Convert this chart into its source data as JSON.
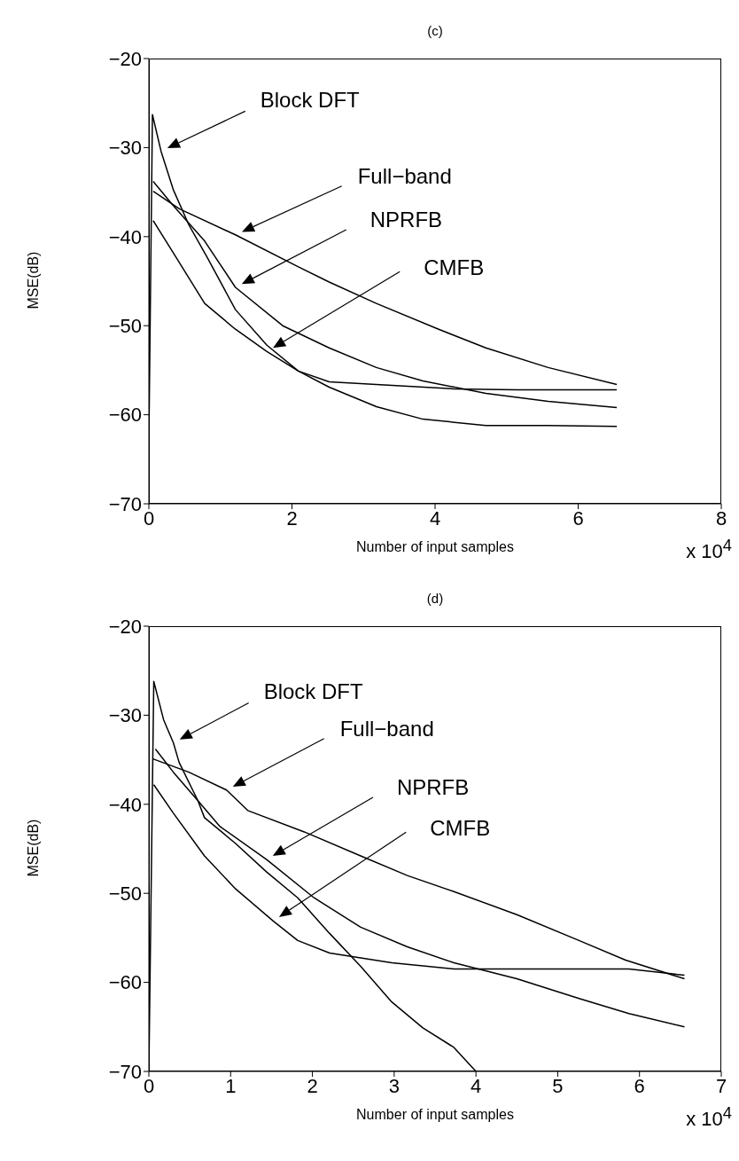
{
  "chart_data": [
    {
      "type": "line",
      "title": "(c)",
      "xlabel": "Number of input samples",
      "ylabel": "MSE(dB)",
      "xlim": [
        0,
        8
      ],
      "ylim": [
        -70,
        -20
      ],
      "xticks": [
        0,
        2,
        4,
        6,
        8
      ],
      "yticks": [
        {
          "value": -70,
          "label": "−70"
        },
        {
          "value": -60,
          "label": "−60"
        },
        {
          "value": -50,
          "label": "−50"
        },
        {
          "value": -40,
          "label": "−40"
        },
        {
          "value": -30,
          "label": "−30"
        },
        {
          "value": -20,
          "label": "−20"
        }
      ],
      "line_style": "solid",
      "series": [
        {
          "color": "#000000",
          "x": [
            0,
            0.05,
            0.17,
            0.34,
            0.56,
            0.82,
            1.21,
            1.65,
            2.09,
            2.52,
            3.18,
            3.83,
            4.71,
            5.58,
            6.54
          ],
          "values": [
            -63,
            -26.3,
            -30.4,
            -34.7,
            -38.7,
            -42.4,
            -48.2,
            -52.2,
            -55.1,
            -56.9,
            -59.1,
            -60.5,
            -61.2,
            -61.2,
            -61.3
          ]
        },
        {
          "color": "#000000",
          "x": [
            0.06,
            0.43,
            1.21,
            2.09,
            2.52,
            3.18,
            4.05,
            4.71,
            5.58,
            6.54
          ],
          "values": [
            -34.9,
            -36.9,
            -39.8,
            -43.4,
            -45.1,
            -47.5,
            -50.4,
            -52.5,
            -54.7,
            -56.6
          ]
        },
        {
          "color": "#000000",
          "x": [
            0.06,
            0.34,
            0.78,
            1.21,
            1.87,
            2.52,
            3.18,
            3.83,
            4.71,
            5.58,
            6.54
          ],
          "values": [
            -33.8,
            -36.5,
            -40.5,
            -45.7,
            -50,
            -52.5,
            -54.7,
            -56.2,
            -57.6,
            -58.5,
            -59.2
          ]
        },
        {
          "color": "#000000",
          "x": [
            0.06,
            0.34,
            0.78,
            1.21,
            1.65,
            2.09,
            2.52,
            3.4,
            4.27,
            5.14,
            6.54
          ],
          "values": [
            -38.2,
            -41.8,
            -47.5,
            -50.4,
            -52.9,
            -55.1,
            -56.3,
            -56.7,
            -57.1,
            -57.2,
            -57.2
          ]
        }
      ],
      "annotations": [
        "Block DFT",
        "Full−band",
        "NPRFB",
        "CMFB",
        "x 10$^{4}$"
      ]
    },
    {
      "type": "line",
      "title": "(d)",
      "xlabel": "Number of input samples",
      "ylabel": "MSE(dB)",
      "xlim": [
        0,
        7
      ],
      "ylim": [
        -70,
        -20
      ],
      "xticks": [
        0,
        1,
        2,
        3,
        4,
        5,
        6,
        7
      ],
      "yticks": [
        {
          "value": -70,
          "label": "−70"
        },
        {
          "value": -60,
          "label": "−60"
        },
        {
          "value": -50,
          "label": "−50"
        },
        {
          "value": -40,
          "label": "−40"
        },
        {
          "value": -30,
          "label": "−30"
        },
        {
          "value": -20,
          "label": "−20"
        }
      ],
      "line_style": "solid",
      "series": [
        {
          "color": "#000000",
          "x": [
            0,
            0.06,
            0.18,
            0.3,
            0.37,
            0.6,
            0.68,
            1.06,
            1.44,
            1.82,
            2.21,
            2.59,
            2.97,
            3.35,
            3.73,
            4
          ],
          "values": [
            -70,
            -26.2,
            -30.5,
            -33.1,
            -35.3,
            -39.6,
            -41.5,
            -44.4,
            -47.6,
            -50.5,
            -54.5,
            -58.2,
            -62.2,
            -65.1,
            -67.3,
            -70
          ]
        },
        {
          "color": "#000000",
          "x": [
            0.05,
            0.49,
            0.95,
            1.21,
            1.9,
            2.59,
            3.16,
            3.73,
            4.5,
            5.26,
            5.83,
            6.55
          ],
          "values": [
            -34.9,
            -36.4,
            -38.4,
            -40.7,
            -43.1,
            -45.8,
            -48,
            -49.8,
            -52.4,
            -55.3,
            -57.5,
            -59.6
          ]
        },
        {
          "color": "#000000",
          "x": [
            0.08,
            0.3,
            0.6,
            0.87,
            1.44,
            2.02,
            2.59,
            3.16,
            3.73,
            4.5,
            5.26,
            5.87,
            6.55
          ],
          "values": [
            -33.8,
            -36.4,
            -39.6,
            -42.5,
            -46.2,
            -50.5,
            -53.8,
            -56,
            -57.8,
            -59.6,
            -61.8,
            -63.5,
            -65
          ]
        },
        {
          "color": "#000000",
          "x": [
            0.06,
            0.3,
            0.68,
            1.06,
            1.52,
            1.82,
            2.21,
            2.97,
            3.73,
            4.5,
            5.26,
            5.87,
            6.55
          ],
          "values": [
            -37.8,
            -41,
            -45.8,
            -49.5,
            -53.1,
            -55.3,
            -56.7,
            -57.8,
            -58.5,
            -58.5,
            -58.5,
            -58.5,
            -59.2
          ]
        }
      ],
      "annotations": [
        "Block DFT",
        "Full−band",
        "NPRFB",
        "CMFB",
        "x 10$^{4}$"
      ]
    }
  ]
}
